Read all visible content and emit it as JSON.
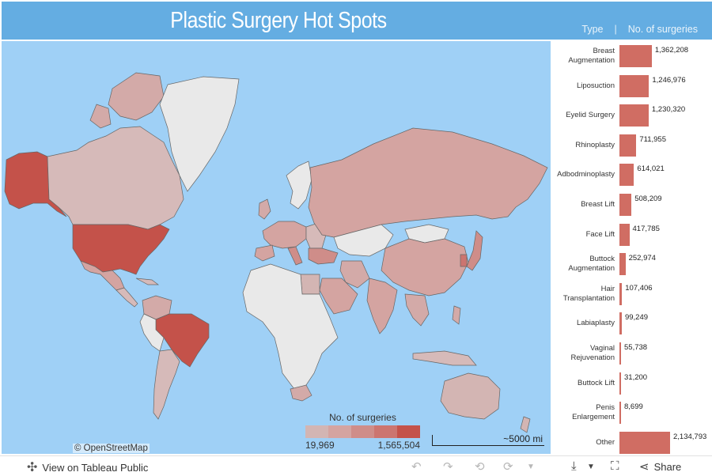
{
  "header": {
    "title": "Plastic Surgery Hot Spots",
    "col_type": "Type",
    "col_sep": "|",
    "col_count": "No. of surgeries"
  },
  "map": {
    "attribution": "© OpenStreetMap",
    "scale_label": "~5000 mi",
    "legend": {
      "title": "No. of surgeries",
      "min": "19,969",
      "max": "1,565,504",
      "colors": [
        "#d3b5b3",
        "#d4a4a1",
        "#cf8d89",
        "#cc7570",
        "#c4524a"
      ]
    },
    "colors": {
      "ocean": "#9fd0f6",
      "no_data": "#e9e9e9",
      "border": "#555555"
    }
  },
  "chart_data": {
    "type": "bar",
    "orientation": "horizontal",
    "xlabel": "No. of surgeries",
    "ylabel": "Type",
    "categories": [
      [
        "Breast",
        "Augmentation"
      ],
      [
        "Liposuction"
      ],
      [
        "Eyelid Surgery"
      ],
      [
        "Rhinoplasty"
      ],
      [
        "Adbodminoplasty"
      ],
      [
        "Breast Lift"
      ],
      [
        "Face Lift"
      ],
      [
        "Buttock",
        "Augmentation"
      ],
      [
        "Hair",
        "Transplantation"
      ],
      [
        "Labiaplasty"
      ],
      [
        "Vaginal",
        "Rejuvenation"
      ],
      [
        "Buttock Lift"
      ],
      [
        "Penis",
        "Enlargement"
      ],
      [
        "Other"
      ]
    ],
    "values": [
      1362208,
      1246976,
      1230320,
      711955,
      614021,
      508209,
      417785,
      252974,
      107406,
      99249,
      55738,
      31200,
      8699,
      2134793
    ],
    "value_labels": [
      "1,362,208",
      "1,246,976",
      "1,230,320",
      "711,955",
      "614,021",
      "508,209",
      "417,785",
      "252,974",
      "107,406",
      "99,249",
      "55,738",
      "31,200",
      "8,699",
      "2,134,793"
    ],
    "xlim": [
      0,
      2134793
    ],
    "bar_color": "#d06d63"
  },
  "footer": {
    "view_label": "View on Tableau Public",
    "share_label": "Share"
  }
}
